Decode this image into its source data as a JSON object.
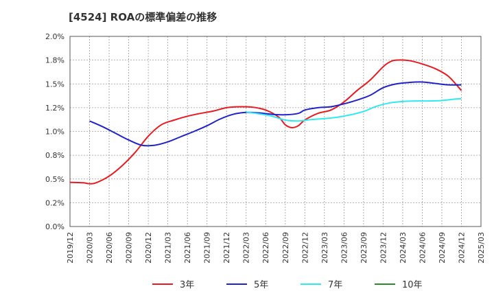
{
  "chart_data": {
    "type": "line",
    "title": "[4524]  ROAの標準偏差の推移",
    "xlabel": "",
    "ylabel": "",
    "x_ticks": [
      "2019/12",
      "2020/03",
      "2020/06",
      "2020/09",
      "2020/12",
      "2021/03",
      "2021/06",
      "2021/09",
      "2021/12",
      "2022/03",
      "2022/06",
      "2022/09",
      "2022/12",
      "2023/03",
      "2023/06",
      "2023/09",
      "2023/12",
      "2024/03",
      "2024/06",
      "2024/09",
      "2024/12",
      "2025/03"
    ],
    "y_ticks": [
      "0.0%",
      "0.2%",
      "0.5%",
      "0.8%",
      "1.0%",
      "1.2%",
      "1.5%",
      "1.8%",
      "2.0%"
    ],
    "ylim": [
      0,
      2.0
    ],
    "grid": true,
    "legend_position": "bottom",
    "series": [
      {
        "name": "3年",
        "color": "#e8191f",
        "points": [
          [
            "2019/12",
            0.465
          ],
          [
            "2020/02",
            0.46
          ],
          [
            "2020/03",
            0.45
          ],
          [
            "2020/04",
            0.46
          ],
          [
            "2020/06",
            0.53
          ],
          [
            "2020/08",
            0.64
          ],
          [
            "2020/10",
            0.78
          ],
          [
            "2020/12",
            0.95
          ],
          [
            "2021/02",
            1.07
          ],
          [
            "2021/04",
            1.12
          ],
          [
            "2021/06",
            1.16
          ],
          [
            "2021/08",
            1.19
          ],
          [
            "2021/10",
            1.215
          ],
          [
            "2021/12",
            1.25
          ],
          [
            "2022/02",
            1.26
          ],
          [
            "2022/04",
            1.255
          ],
          [
            "2022/06",
            1.225
          ],
          [
            "2022/08",
            1.15
          ],
          [
            "2022/09",
            1.07
          ],
          [
            "2022/10",
            1.04
          ],
          [
            "2022/11",
            1.06
          ],
          [
            "2022/12",
            1.12
          ],
          [
            "2023/02",
            1.19
          ],
          [
            "2023/04",
            1.225
          ],
          [
            "2023/06",
            1.31
          ],
          [
            "2023/08",
            1.43
          ],
          [
            "2023/10",
            1.54
          ],
          [
            "2023/12",
            1.68
          ],
          [
            "2024/01",
            1.73
          ],
          [
            "2024/02",
            1.75
          ],
          [
            "2024/04",
            1.745
          ],
          [
            "2024/06",
            1.71
          ],
          [
            "2024/08",
            1.66
          ],
          [
            "2024/10",
            1.58
          ],
          [
            "2024/12",
            1.43
          ]
        ]
      },
      {
        "name": "5年",
        "color": "#1f22c8",
        "points": [
          [
            "2020/03",
            1.11
          ],
          [
            "2020/05",
            1.05
          ],
          [
            "2020/07",
            0.98
          ],
          [
            "2020/09",
            0.91
          ],
          [
            "2020/11",
            0.855
          ],
          [
            "2021/01",
            0.855
          ],
          [
            "2021/03",
            0.89
          ],
          [
            "2021/05",
            0.945
          ],
          [
            "2021/07",
            1.0
          ],
          [
            "2021/09",
            1.06
          ],
          [
            "2021/11",
            1.13
          ],
          [
            "2022/01",
            1.18
          ],
          [
            "2022/03",
            1.2
          ],
          [
            "2022/05",
            1.195
          ],
          [
            "2022/07",
            1.18
          ],
          [
            "2022/09",
            1.175
          ],
          [
            "2022/11",
            1.19
          ],
          [
            "2022/12",
            1.225
          ],
          [
            "2023/02",
            1.25
          ],
          [
            "2023/04",
            1.26
          ],
          [
            "2023/06",
            1.29
          ],
          [
            "2023/08",
            1.33
          ],
          [
            "2023/10",
            1.38
          ],
          [
            "2023/12",
            1.46
          ],
          [
            "2024/02",
            1.5
          ],
          [
            "2024/04",
            1.515
          ],
          [
            "2024/06",
            1.52
          ],
          [
            "2024/08",
            1.505
          ],
          [
            "2024/10",
            1.49
          ],
          [
            "2024/12",
            1.49
          ]
        ]
      },
      {
        "name": "7年",
        "color": "#30e8f0",
        "points": [
          [
            "2022/03",
            1.205
          ],
          [
            "2022/05",
            1.185
          ],
          [
            "2022/07",
            1.16
          ],
          [
            "2022/09",
            1.12
          ],
          [
            "2022/11",
            1.11
          ],
          [
            "2023/01",
            1.125
          ],
          [
            "2023/03",
            1.135
          ],
          [
            "2023/05",
            1.15
          ],
          [
            "2023/07",
            1.175
          ],
          [
            "2023/09",
            1.21
          ],
          [
            "2023/11",
            1.265
          ],
          [
            "2024/01",
            1.3
          ],
          [
            "2024/03",
            1.315
          ],
          [
            "2024/05",
            1.32
          ],
          [
            "2024/07",
            1.32
          ],
          [
            "2024/09",
            1.325
          ],
          [
            "2024/11",
            1.34
          ],
          [
            "2024/12",
            1.345
          ]
        ]
      },
      {
        "name": "10年",
        "color": "#2a8a2a",
        "points": []
      }
    ]
  }
}
